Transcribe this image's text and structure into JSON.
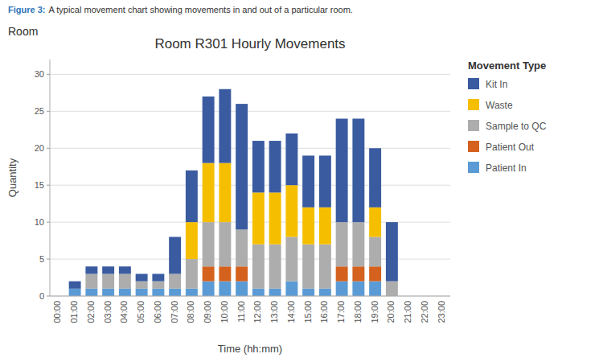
{
  "chart_data": {
    "type": "bar",
    "stacked": true,
    "title": "Room R301 Hourly Movements",
    "x_label": "Time (hh:mm)",
    "y_label": "Quantity",
    "legend_title": "Movement Type",
    "annotations": [
      "Figure 3:",
      "A typical movement chart showing movements in and out of a particular room.",
      "Room"
    ],
    "categories": [
      "00:00",
      "01:00",
      "02:00",
      "03:00",
      "04:00",
      "05:00",
      "06:00",
      "07:00",
      "08:00",
      "09:00",
      "10:00",
      "11:00",
      "12:00",
      "13:00",
      "14:00",
      "15:00",
      "16:00",
      "17:00",
      "18:00",
      "19:00",
      "20:00",
      "21:00",
      "22:00",
      "23:00"
    ],
    "series": [
      {
        "name": "Patient In",
        "color": "#5B9BD5",
        "values": [
          0,
          1,
          1,
          1,
          1,
          1,
          1,
          1,
          1,
          2,
          2,
          2,
          1,
          1,
          2,
          1,
          1,
          2,
          2,
          2,
          0,
          0,
          0,
          0
        ]
      },
      {
        "name": "Patient Out",
        "color": "#D4621E",
        "values": [
          0,
          0,
          0,
          0,
          0,
          0,
          0,
          0,
          0,
          2,
          2,
          2,
          0,
          0,
          0,
          0,
          0,
          2,
          2,
          2,
          0,
          0,
          0,
          0
        ]
      },
      {
        "name": "Sample to QC",
        "color": "#ADADAD",
        "values": [
          0,
          0,
          2,
          2,
          2,
          1,
          1,
          2,
          4,
          6,
          6,
          5,
          6,
          6,
          6,
          6,
          6,
          6,
          6,
          4,
          2,
          0,
          0,
          0
        ]
      },
      {
        "name": "Waste",
        "color": "#F5BF00",
        "values": [
          0,
          0,
          0,
          0,
          0,
          0,
          0,
          0,
          5,
          8,
          8,
          0,
          7,
          7,
          7,
          5,
          5,
          0,
          0,
          4,
          0,
          0,
          0,
          0
        ]
      },
      {
        "name": "Kit In",
        "color": "#3A5BA0",
        "values": [
          0,
          1,
          1,
          1,
          1,
          1,
          1,
          5,
          7,
          9,
          10,
          17,
          7,
          7,
          7,
          7,
          7,
          14,
          14,
          8,
          8,
          0,
          0,
          0
        ]
      }
    ],
    "ylim": [
      0,
      32
    ],
    "yticks": [
      0,
      5,
      10,
      15,
      20,
      25,
      30
    ],
    "grid": true,
    "legend": "right"
  }
}
